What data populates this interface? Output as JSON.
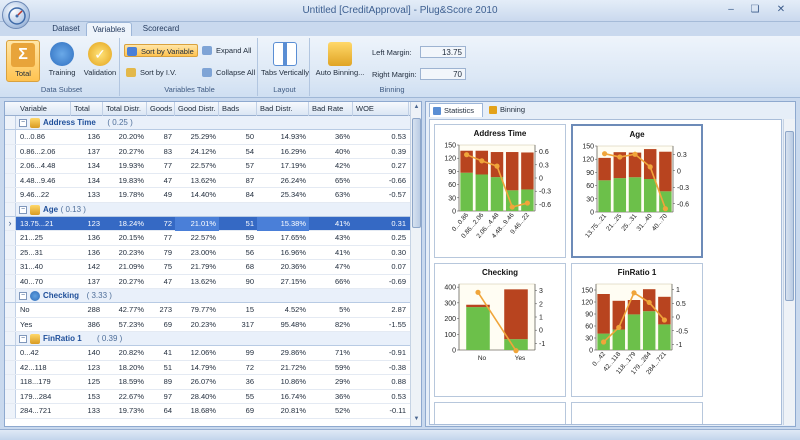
{
  "window": {
    "title": "Untitled [CreditApproval] - Plug&Score 2010",
    "minimize": "–",
    "restore": "❏",
    "close": "✕",
    "help": "?"
  },
  "tabs": [
    {
      "label": "Dataset"
    },
    {
      "label": "Variables"
    },
    {
      "label": "Scorecard"
    }
  ],
  "ribbon": {
    "data_subset": {
      "group_label": "Data Subset",
      "total": "Total",
      "training": "Training",
      "validation": "Validation"
    },
    "variables_table": {
      "group_label": "Variables Table",
      "sort_by_variable": "Sort by Variable",
      "sort_by_iv": "Sort by I.V.",
      "expand_all": "Expand All",
      "collapse_all": "Collapse All"
    },
    "layout": {
      "group_label": "Layout",
      "tabs_vertically": "Tabs Vertically"
    },
    "binning": {
      "group_label": "Binning",
      "auto_binning": "Auto Binning...",
      "left_margin_label": "Left Margin:",
      "left_margin_value": "13.75",
      "right_margin_label": "Right Margin:",
      "right_margin_value": "70"
    }
  },
  "table": {
    "columns": [
      "Variable",
      "Total",
      "Total Distr.",
      "Goods",
      "Good Distr.",
      "Bads",
      "Bad Distr.",
      "Bad Rate",
      "WOE"
    ],
    "groups": [
      {
        "name": "Address Time",
        "iv": "( 0.25 )",
        "icon": "ruler-icon",
        "rows": [
          [
            "0...0.86",
            "136",
            "20.20%",
            "87",
            "25.29%",
            "50",
            "14.93%",
            "36%",
            "0.53"
          ],
          [
            "0.86...2.06",
            "137",
            "20.27%",
            "83",
            "24.12%",
            "54",
            "16.29%",
            "40%",
            "0.39"
          ],
          [
            "2.06...4.48",
            "134",
            "19.93%",
            "77",
            "22.57%",
            "57",
            "17.19%",
            "42%",
            "0.27"
          ],
          [
            "4.48...9.46",
            "134",
            "19.83%",
            "47",
            "13.62%",
            "87",
            "26.24%",
            "65%",
            "-0.66"
          ],
          [
            "9.46...22",
            "133",
            "19.78%",
            "49",
            "14.40%",
            "84",
            "25.34%",
            "63%",
            "-0.57"
          ]
        ]
      },
      {
        "name": "Age",
        "iv": "( 0.13 )",
        "icon": "ruler-icon",
        "rows": [
          [
            "13.75...21",
            "123",
            "18.24%",
            "72",
            "21.01%",
            "51",
            "15.38%",
            "41%",
            "0.31"
          ],
          [
            "21...25",
            "136",
            "20.15%",
            "77",
            "22.57%",
            "59",
            "17.65%",
            "43%",
            "0.25"
          ],
          [
            "25...31",
            "136",
            "20.23%",
            "79",
            "23.00%",
            "56",
            "16.96%",
            "41%",
            "0.30"
          ],
          [
            "31...40",
            "142",
            "21.09%",
            "75",
            "21.79%",
            "68",
            "20.36%",
            "47%",
            "0.07"
          ],
          [
            "40...70",
            "137",
            "20.27%",
            "47",
            "13.62%",
            "90",
            "27.15%",
            "66%",
            "-0.69"
          ]
        ]
      },
      {
        "name": "Checking",
        "iv": "( 3.33 )",
        "icon": "pie-icon",
        "rows": [
          [
            "No",
            "288",
            "42.77%",
            "273",
            "79.77%",
            "15",
            "4.52%",
            "5%",
            "2.87"
          ],
          [
            "Yes",
            "386",
            "57.23%",
            "69",
            "20.23%",
            "317",
            "95.48%",
            "82%",
            "-1.55"
          ]
        ]
      },
      {
        "name": "FinRatio 1",
        "iv": "( 0.39 )",
        "icon": "ruler-icon",
        "rows": [
          [
            "0...42",
            "140",
            "20.82%",
            "41",
            "12.06%",
            "99",
            "29.86%",
            "71%",
            "-0.91"
          ],
          [
            "42...118",
            "123",
            "18.20%",
            "51",
            "14.79%",
            "72",
            "21.72%",
            "59%",
            "-0.38"
          ],
          [
            "118...179",
            "125",
            "18.59%",
            "89",
            "26.07%",
            "36",
            "10.86%",
            "29%",
            "0.88"
          ],
          [
            "179...284",
            "153",
            "22.67%",
            "97",
            "28.40%",
            "55",
            "16.74%",
            "36%",
            "0.53"
          ],
          [
            "284...721",
            "133",
            "19.73%",
            "64",
            "18.68%",
            "69",
            "20.81%",
            "52%",
            "-0.11"
          ]
        ]
      }
    ]
  },
  "panel": {
    "tab_statistics": "Statistics",
    "tab_binning": "Binning"
  },
  "colors": {
    "good": "#6cc04a",
    "bad": "#b8441f",
    "line": "#f0a53a",
    "ribbon_active": "#ffc350",
    "selection": "#3569c4"
  },
  "chart_data": [
    {
      "type": "bar",
      "title": "Address Time",
      "categories": [
        "0...0.86",
        "0.86...2.06",
        "2.06...4.48",
        "4.48...9.46",
        "9.46...22"
      ],
      "series": [
        {
          "values": [
            87,
            83,
            77,
            47,
            49
          ]
        },
        {
          "values": [
            50,
            54,
            57,
            87,
            84
          ]
        },
        {
          "values": [
            0.53,
            0.39,
            0.27,
            -0.66,
            -0.57
          ]
        }
      ],
      "ylim": [
        0,
        150
      ],
      "yticks": [
        "0",
        "30",
        "60",
        "90",
        "120",
        "150"
      ],
      "y2lim": [
        -0.75,
        0.75
      ],
      "y2ticks": [
        "-0.6",
        "-0.3",
        "0",
        "0.3",
        "0.6"
      ]
    },
    {
      "type": "bar",
      "title": "Age",
      "categories": [
        "13.75...21",
        "21...25",
        "25...31",
        "31...40",
        "40...70"
      ],
      "series": [
        {
          "values": [
            72,
            77,
            79,
            75,
            47
          ]
        },
        {
          "values": [
            51,
            59,
            56,
            68,
            90
          ]
        },
        {
          "values": [
            0.31,
            0.25,
            0.3,
            0.07,
            -0.69
          ]
        }
      ],
      "ylim": [
        0,
        150
      ],
      "yticks": [
        "0",
        "30",
        "60",
        "90",
        "120",
        "150"
      ],
      "y2lim": [
        -0.75,
        0.45
      ],
      "y2ticks": [
        "-0.6",
        "-0.3",
        "0",
        "0.3"
      ]
    },
    {
      "type": "bar",
      "title": "Checking",
      "categories": [
        "No",
        "Yes"
      ],
      "series": [
        {
          "values": [
            273,
            69
          ]
        },
        {
          "values": [
            15,
            317
          ]
        },
        {
          "values": [
            2.87,
            -1.55
          ]
        }
      ],
      "ylim": [
        0,
        420
      ],
      "yticks": [
        "0",
        "100",
        "200",
        "300",
        "400"
      ],
      "y2lim": [
        -1.5,
        3.5
      ],
      "y2ticks": [
        "-1",
        "0",
        "1",
        "2",
        "3"
      ]
    },
    {
      "type": "bar",
      "title": "FinRatio 1",
      "categories": [
        "0...42",
        "42...118",
        "118...179",
        "179...284",
        "284...721"
      ],
      "series": [
        {
          "values": [
            41,
            51,
            89,
            97,
            64
          ]
        },
        {
          "values": [
            99,
            72,
            36,
            55,
            69
          ]
        },
        {
          "values": [
            -0.91,
            -0.38,
            0.88,
            0.53,
            -0.11
          ]
        }
      ],
      "ylim": [
        0,
        165
      ],
      "yticks": [
        "0",
        "30",
        "60",
        "90",
        "120",
        "150"
      ],
      "y2lim": [
        -1.2,
        1.2
      ],
      "y2ticks": [
        "-1",
        "-0.5",
        "0",
        "0.5",
        "1"
      ]
    }
  ]
}
